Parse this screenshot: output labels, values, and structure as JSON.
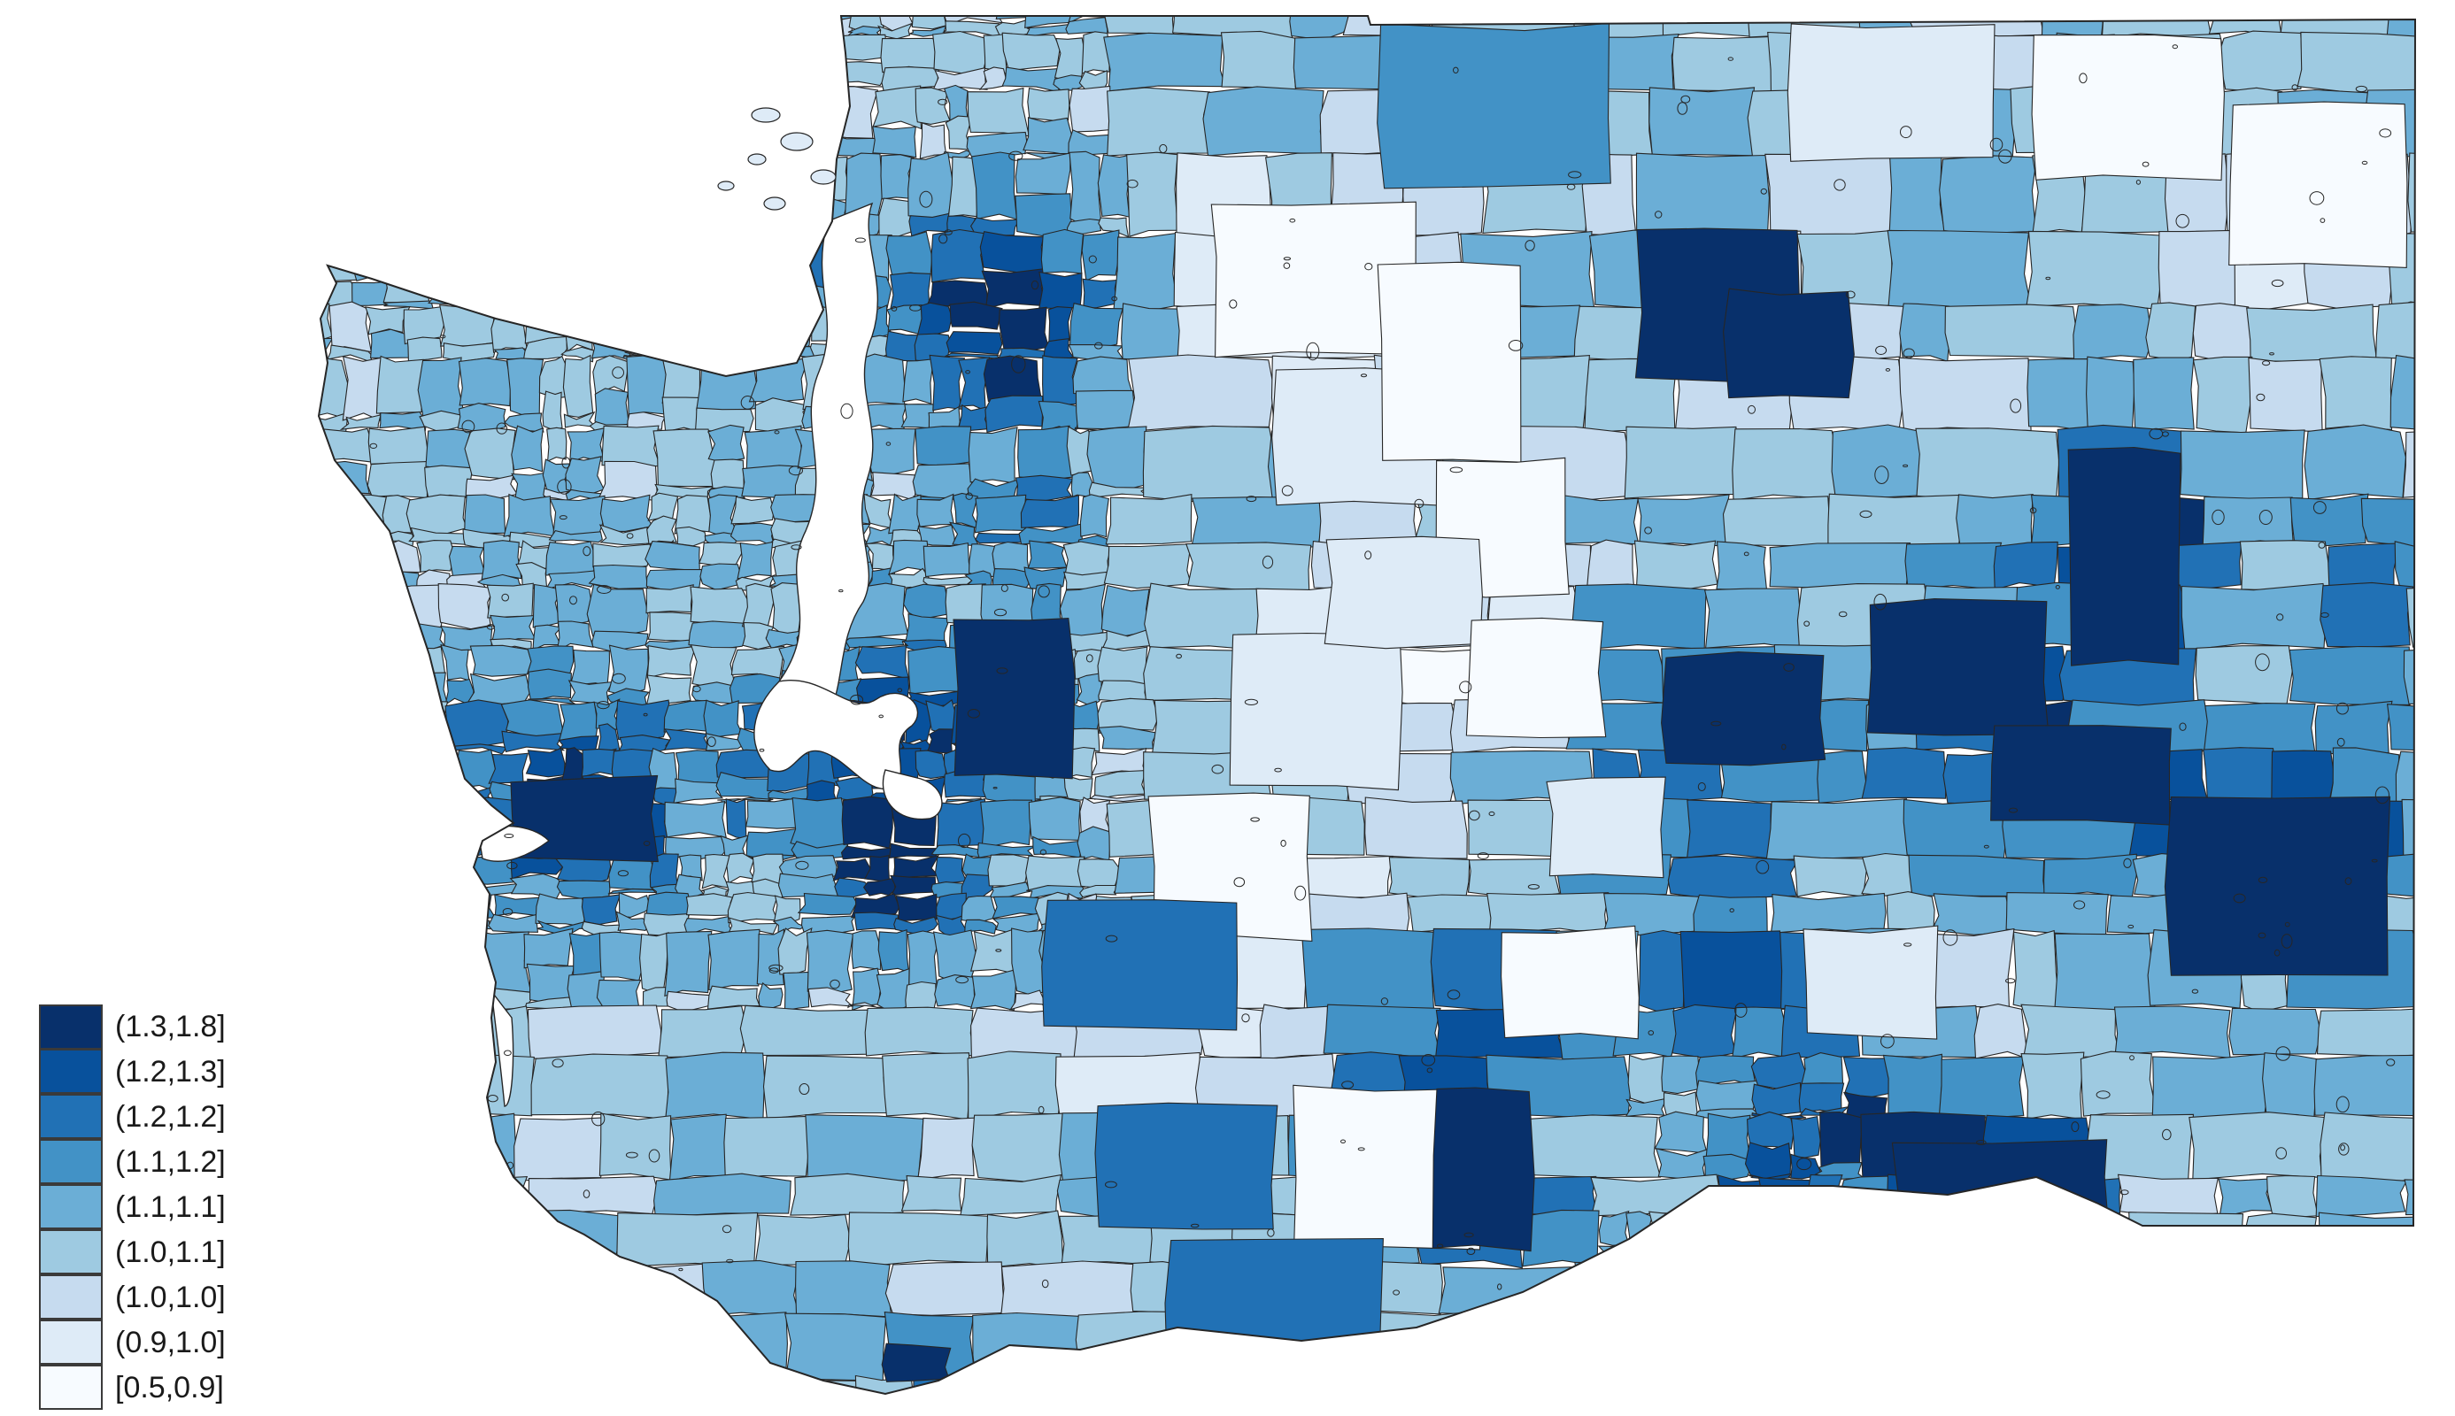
{
  "map": {
    "palette": [
      "#f7fbff",
      "#deebf7",
      "#c6dbef",
      "#9ecae1",
      "#6baed6",
      "#4292c6",
      "#2171b5",
      "#08519c",
      "#08306b"
    ],
    "border_color": "#262626",
    "background": "#ffffff"
  },
  "legend": {
    "entries": [
      {
        "label": "(1.3,1.8]",
        "color": "#08306b"
      },
      {
        "label": "(1.2,1.3]",
        "color": "#08519c"
      },
      {
        "label": "(1.2,1.2]",
        "color": "#2171b5"
      },
      {
        "label": "(1.1,1.2]",
        "color": "#4292c6"
      },
      {
        "label": "(1.1,1.1]",
        "color": "#6baed6"
      },
      {
        "label": "(1.0,1.1]",
        "color": "#9ecae1"
      },
      {
        "label": "(1.0,1.0]",
        "color": "#c6dbef"
      },
      {
        "label": "(0.9,1.0]",
        "color": "#deebf7"
      },
      {
        "label": "[0.5,0.9]",
        "color": "#f7fbff"
      }
    ]
  }
}
